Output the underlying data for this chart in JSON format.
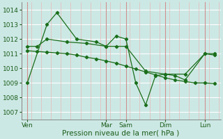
{
  "xlabel": "Pression niveau de la mer( hPa )",
  "bg_color": "#cce8e4",
  "grid_color_h": "#ffffff",
  "grid_color_v": "#e8b8b8",
  "line_color": "#1a6e1a",
  "ylim": [
    1006.5,
    1014.5
  ],
  "yticks": [
    1007,
    1008,
    1009,
    1010,
    1011,
    1012,
    1013,
    1014
  ],
  "xtick_labels": [
    "Ven",
    "Mar",
    "Sam",
    "Dim",
    "Lun"
  ],
  "xtick_positions": [
    0.0,
    4.0,
    5.0,
    7.0,
    9.0
  ],
  "xlim": [
    -0.3,
    9.8
  ],
  "line1_x": [
    0.0,
    1.0,
    1.5,
    2.5,
    3.5,
    4.0,
    4.5,
    5.0,
    5.5,
    6.0,
    6.5,
    7.0,
    7.5,
    8.0,
    9.0,
    9.5
  ],
  "line1_y": [
    1009.0,
    1013.0,
    1013.8,
    1012.0,
    1011.8,
    1011.5,
    1012.2,
    1012.0,
    1009.0,
    1007.5,
    1009.5,
    1009.6,
    1009.5,
    1009.2,
    1011.0,
    1011.0
  ],
  "line2_x": [
    0.0,
    0.5,
    1.0,
    2.0,
    3.0,
    4.0,
    4.5,
    5.0,
    6.0,
    7.0,
    8.0,
    9.0,
    9.5
  ],
  "line2_y": [
    1011.5,
    1011.5,
    1012.0,
    1011.8,
    1011.7,
    1011.5,
    1011.5,
    1011.5,
    1009.8,
    1009.6,
    1009.6,
    1011.0,
    1010.9
  ],
  "line3_x": [
    0.0,
    0.5,
    1.0,
    1.5,
    2.0,
    2.5,
    3.0,
    3.5,
    4.0,
    4.5,
    5.0,
    5.5,
    6.0,
    6.5,
    7.0,
    7.5,
    8.0,
    8.5,
    9.0,
    9.5
  ],
  "line3_y": [
    1011.2,
    1011.15,
    1011.1,
    1011.05,
    1011.0,
    1010.9,
    1010.75,
    1010.65,
    1010.5,
    1010.35,
    1010.15,
    1009.95,
    1009.75,
    1009.55,
    1009.35,
    1009.2,
    1009.1,
    1009.0,
    1009.0,
    1008.95
  ],
  "xlabel_fontsize": 7.5,
  "tick_fontsize": 6.5,
  "figsize": [
    3.2,
    2.0
  ],
  "dpi": 100
}
